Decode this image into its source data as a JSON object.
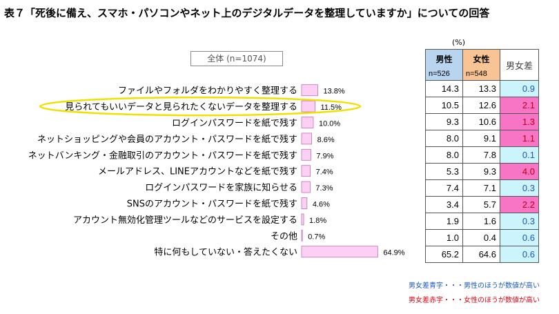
{
  "title": "表７「死後に備え、スマホ・パソコンやネット上のデジタルデータを整理していますか」についての回答",
  "overall_label": "全体 (n=1074)",
  "unit": "(%)",
  "table_header": {
    "male": "男性",
    "male_n": "n=526",
    "female": "女性",
    "female_n": "n=548",
    "diff": "男女差"
  },
  "chart_data": {
    "type": "bar",
    "categories": [
      "ファイルやフォルダをわかりやすく整理する",
      "見られてもいいデータと見られたくないデータを整理する",
      "ログインパスワードを紙で残す",
      "ネットショッピングや会員のアカウント・パスワードを紙で残す",
      "ネットバンキング・金融取引のアカウント・パスワードを紙で残す",
      "メールアドレス、LINEアカウントなどを紙で残す",
      "ログインパスワードを家族に知らせる",
      "SNSのアカウント・パスワードを紙で残す",
      "アカウント無効化管理ツールなどのサービスを設定する",
      "その他",
      "特に何もしていない・答えたくない"
    ],
    "values": [
      13.8,
      11.5,
      10.0,
      8.6,
      7.9,
      7.4,
      7.3,
      4.6,
      1.8,
      0.7,
      64.9
    ],
    "value_labels": [
      "13.8%",
      "11.5%",
      "10.0%",
      "8.6%",
      "7.9%",
      "7.4%",
      "7.3%",
      "4.6%",
      "1.8%",
      "0.7%",
      "64.9%"
    ],
    "highlighted_index": 1,
    "bar_color": "#fcd0f4",
    "bar_border": "#c070b0",
    "highlight_color": "#f0e000",
    "table": [
      {
        "male": "14.3",
        "female": "13.3",
        "diff": "0.9",
        "diff_color": "blue"
      },
      {
        "male": "10.5",
        "female": "12.6",
        "diff": "2.1",
        "diff_color": "pink"
      },
      {
        "male": "9.3",
        "female": "10.6",
        "diff": "1.3",
        "diff_color": "pink"
      },
      {
        "male": "8.0",
        "female": "9.1",
        "diff": "1.1",
        "diff_color": "pink"
      },
      {
        "male": "8.0",
        "female": "7.8",
        "diff": "0.1",
        "diff_color": "blue"
      },
      {
        "male": "5.3",
        "female": "9.3",
        "diff": "4.0",
        "diff_color": "pink"
      },
      {
        "male": "7.4",
        "female": "7.1",
        "diff": "0.3",
        "diff_color": "blue"
      },
      {
        "male": "3.4",
        "female": "5.7",
        "diff": "2.2",
        "diff_color": "pink"
      },
      {
        "male": "1.9",
        "female": "1.6",
        "diff": "0.3",
        "diff_color": "blue"
      },
      {
        "male": "1.0",
        "female": "0.4",
        "diff": "0.6",
        "diff_color": "blue"
      },
      {
        "male": "65.2",
        "female": "64.6",
        "diff": "0.6",
        "diff_color": "blue"
      }
    ]
  },
  "notes": {
    "blue": "男女差青字・・・男性のほうが数値が高い",
    "red": "男女差赤字・・・女性のほうが数値が高い"
  }
}
